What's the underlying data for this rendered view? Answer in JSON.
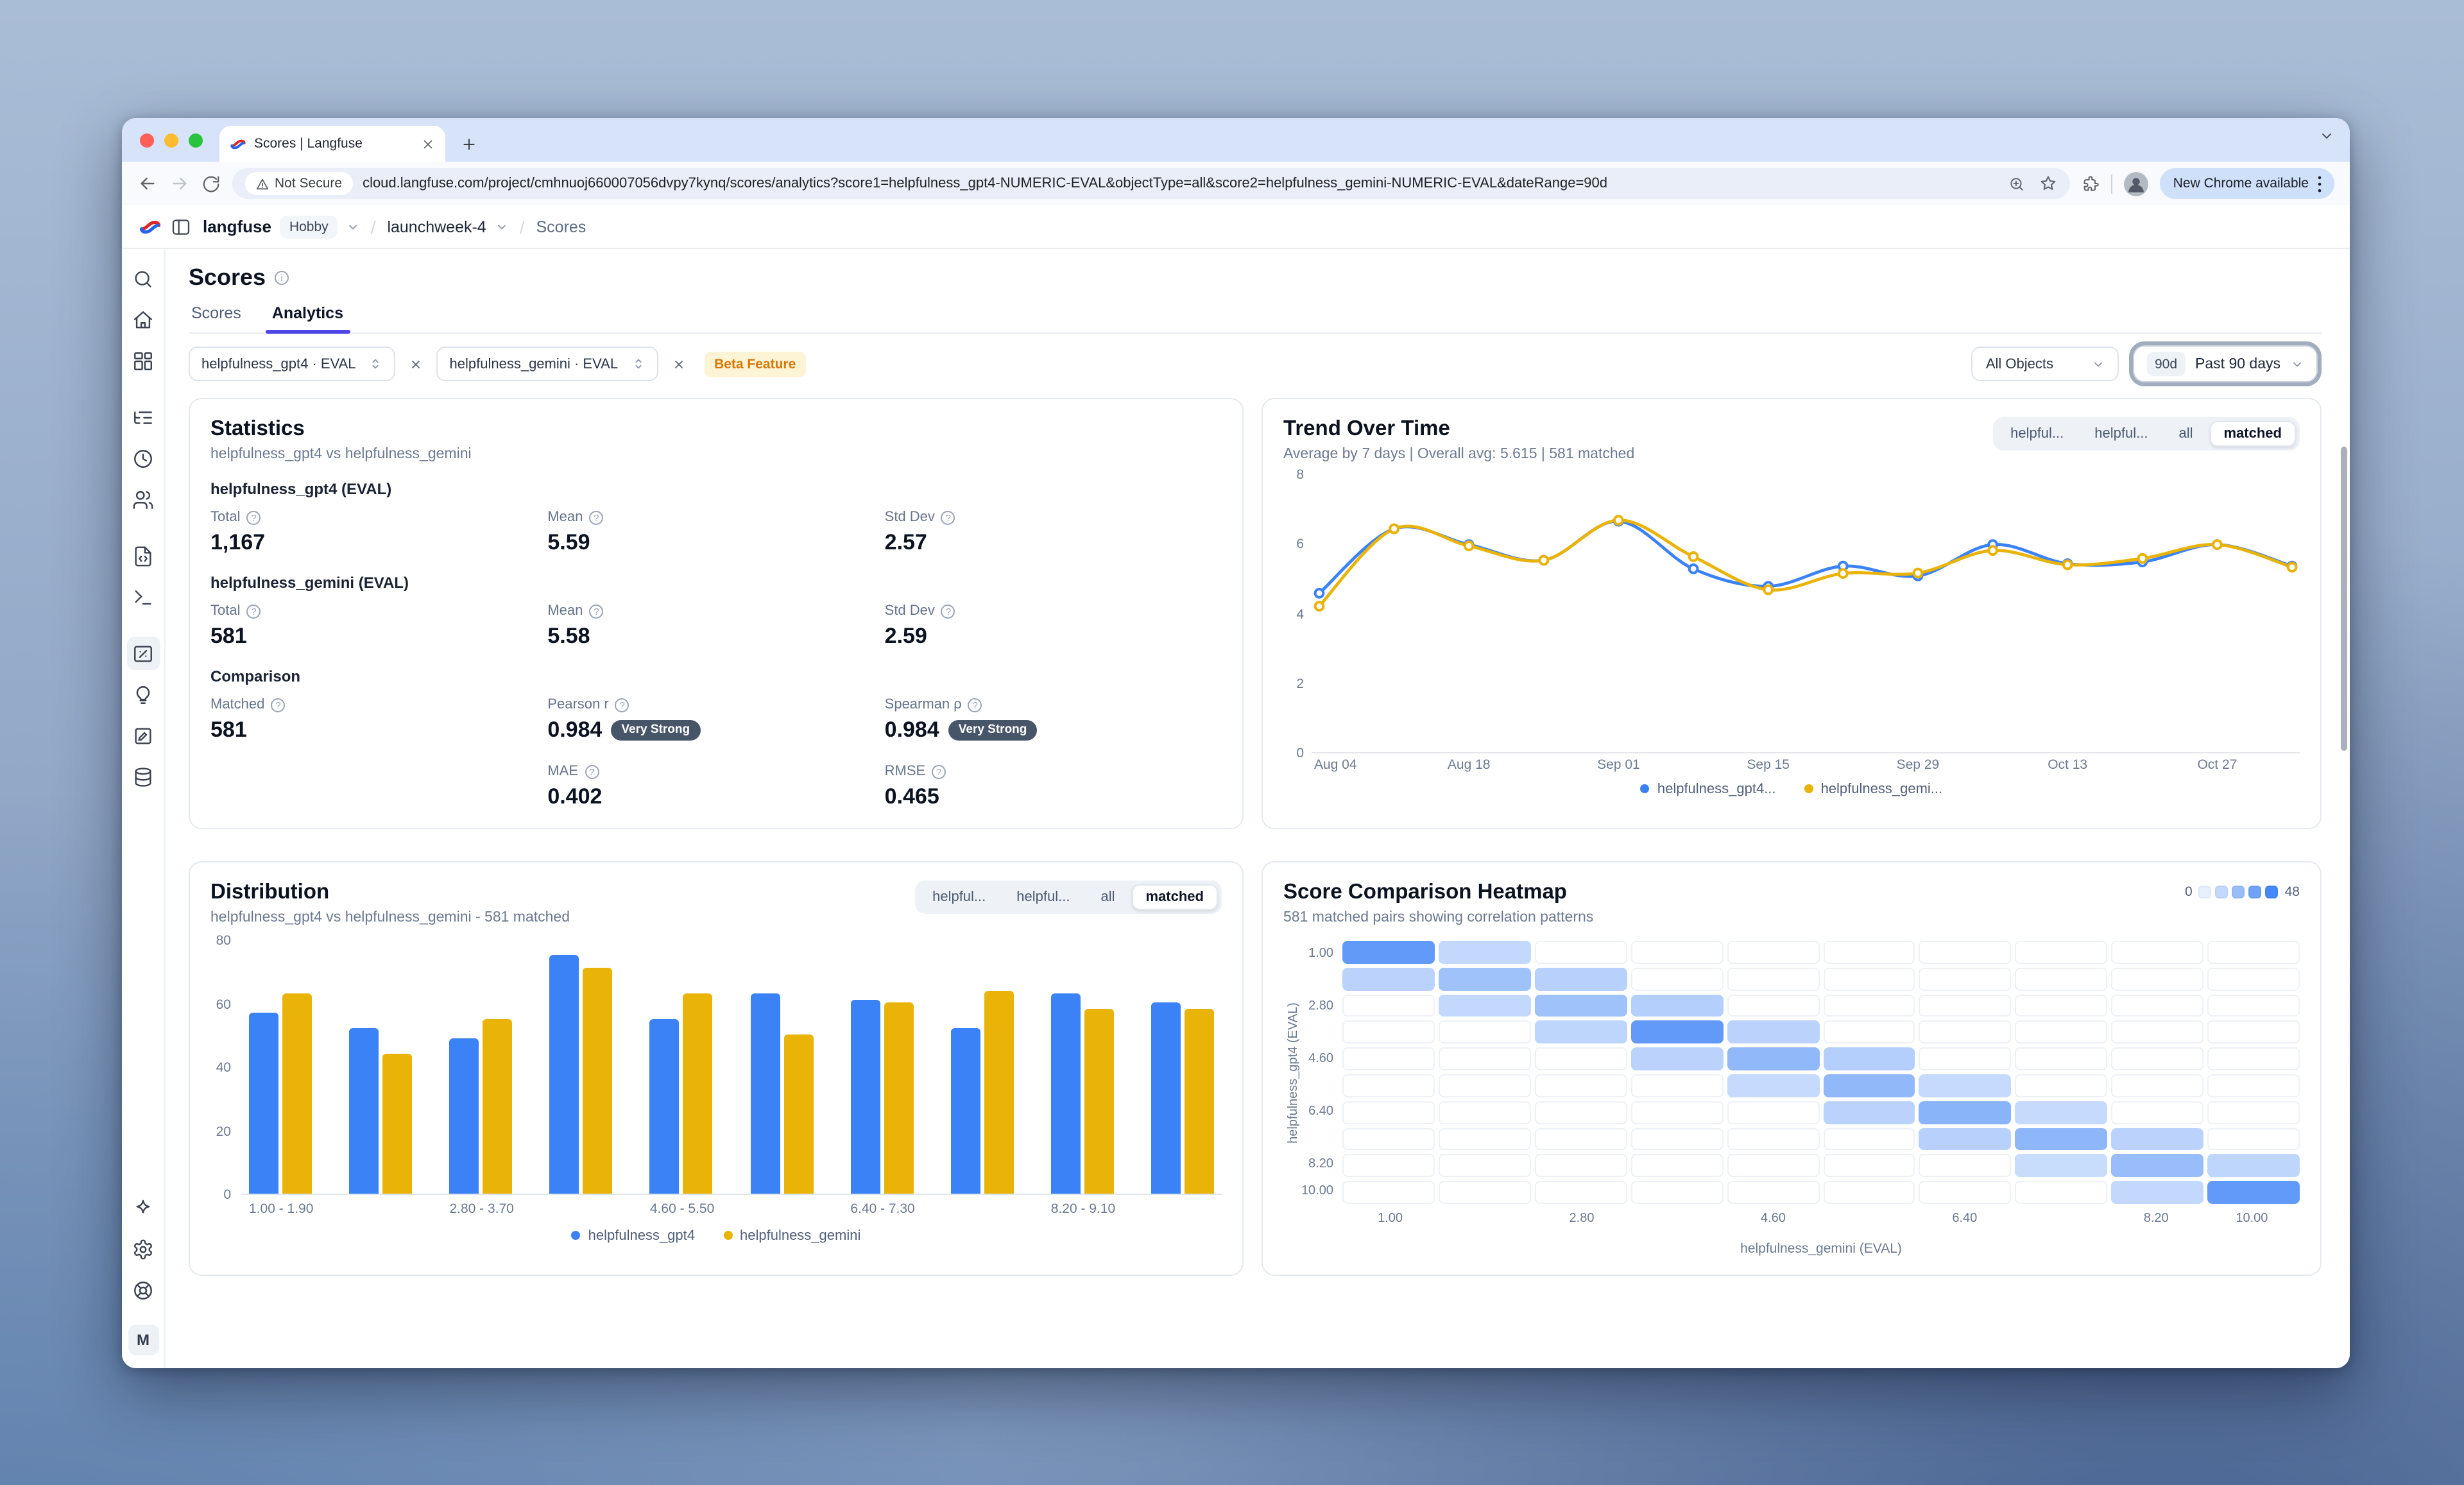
{
  "colors": {
    "blue": "#3b82f6",
    "yellow": "#eab308",
    "accent": "#4f46e5"
  },
  "browser": {
    "tab_title": "Scores | Langfuse",
    "security_label": "Not Secure",
    "url": "cloud.langfuse.com/project/cmhnuoj660007056dvpy7kynq/scores/analytics?score1=helpfulness_gpt4-NUMERIC-EVAL&objectType=all&score2=helpfulness_gemini-NUMERIC-EVAL&dateRange=90d",
    "update_pill": "New Chrome available"
  },
  "header": {
    "org": "langfuse",
    "plan_badge": "Hobby",
    "project": "launchweek-4",
    "page": "Scores"
  },
  "sidebar": {
    "active": "scores",
    "top": [
      "search",
      "home",
      "dashboard",
      "tracing",
      "sessions",
      "users",
      "prompts",
      "playground",
      "scores",
      "evaluation",
      "datasets",
      "storage"
    ],
    "groups_after": [
      "dashboard",
      "users",
      "playground"
    ],
    "bottom": [
      "sparkle",
      "settings",
      "support"
    ],
    "avatar": "M"
  },
  "page": {
    "title": "Scores",
    "tabs": [
      {
        "label": "Scores",
        "active": false
      },
      {
        "label": "Analytics",
        "active": true
      }
    ],
    "filters": {
      "score1": "helpfulness_gpt4 · EVAL",
      "score2": "helpfulness_gemini · EVAL",
      "beta_badge": "Beta Feature",
      "object_filter": "All Objects",
      "date_range_short": "90d",
      "date_range": "Past 90 days"
    }
  },
  "statistics": {
    "title": "Statistics",
    "subtitle": "helpfulness_gpt4 vs helpfulness_gemini",
    "sections": [
      {
        "name": "helpfulness_gpt4 (EVAL)",
        "metrics": [
          {
            "label": "Total",
            "value": "1,167"
          },
          {
            "label": "Mean",
            "value": "5.59"
          },
          {
            "label": "Std Dev",
            "value": "2.57"
          }
        ]
      },
      {
        "name": "helpfulness_gemini (EVAL)",
        "metrics": [
          {
            "label": "Total",
            "value": "581"
          },
          {
            "label": "Mean",
            "value": "5.58"
          },
          {
            "label": "Std Dev",
            "value": "2.59"
          }
        ]
      }
    ],
    "comparison": {
      "name": "Comparison",
      "rows": [
        [
          {
            "label": "Matched",
            "value": "581"
          },
          {
            "label": "Pearson r",
            "value": "0.984",
            "badge": "Very Strong"
          },
          {
            "label": "Spearman ρ",
            "value": "0.984",
            "badge": "Very Strong"
          }
        ],
        [
          null,
          {
            "label": "MAE",
            "value": "0.402"
          },
          {
            "label": "RMSE",
            "value": "0.465"
          }
        ]
      ]
    }
  },
  "trend": {
    "title": "Trend Over Time",
    "subtitle": "Average by 7 days | Overall avg: 5.615 | 581 matched",
    "views": {
      "options": [
        "helpful...",
        "helpful...",
        "all",
        "matched"
      ],
      "active": 3
    },
    "legend": [
      {
        "label": "helpfulness_gpt4...",
        "color": "#3b82f6"
      },
      {
        "label": "helpfulness_gemi...",
        "color": "#eab308"
      }
    ],
    "chart_data": {
      "type": "line",
      "x": [
        "Aug 04",
        "Aug 11",
        "Aug 18",
        "Aug 25",
        "Sep 01",
        "Sep 08",
        "Sep 15",
        "Sep 22",
        "Sep 29",
        "Oct 06",
        "Oct 13",
        "Oct 20",
        "Oct 27",
        "Nov 03"
      ],
      "xticks": {
        "indices": [
          0,
          2,
          4,
          6,
          8,
          10,
          12
        ],
        "labels": [
          "Aug 04",
          "Aug 18",
          "Sep 01",
          "Sep 15",
          "Sep 29",
          "Oct 13",
          "Oct 27"
        ]
      },
      "series": [
        {
          "name": "helpfulness_gpt4",
          "color": "#3b82f6",
          "values": [
            4.6,
            6.45,
            6.0,
            5.55,
            6.67,
            5.3,
            4.8,
            5.38,
            5.1,
            6.0,
            5.45,
            5.5,
            6.0,
            5.38
          ]
        },
        {
          "name": "helpfulness_gemini",
          "color": "#eab308",
          "values": [
            4.23,
            6.45,
            5.96,
            5.55,
            6.7,
            5.65,
            4.7,
            5.17,
            5.18,
            5.83,
            5.42,
            5.6,
            6.0,
            5.35
          ]
        }
      ],
      "ylim": [
        0,
        8
      ],
      "yticks": [
        0,
        2,
        4,
        6,
        8
      ]
    }
  },
  "distribution": {
    "title": "Distribution",
    "subtitle": "helpfulness_gpt4 vs helpfulness_gemini - 581 matched",
    "views": {
      "options": [
        "helpful...",
        "helpful...",
        "all",
        "matched"
      ],
      "active": 3
    },
    "legend": [
      {
        "label": "helpfulness_gpt4",
        "color": "#3b82f6"
      },
      {
        "label": "helpfulness_gemini",
        "color": "#eab308"
      }
    ],
    "chart_data": {
      "type": "bar",
      "bins": [
        "1.00 - 1.90",
        "1.90 - 2.80",
        "2.80 - 3.70",
        "3.70 - 4.60",
        "4.60 - 5.50",
        "5.50 - 6.40",
        "6.40 - 7.30",
        "7.30 - 8.20",
        "8.20 - 9.10",
        "9.10 - 10.00"
      ],
      "shown_bin_indices": [
        0,
        2,
        4,
        6,
        8
      ],
      "series": [
        {
          "name": "helpfulness_gpt4",
          "color": "#3b82f6",
          "values": [
            57,
            52,
            49,
            75,
            55,
            63,
            61,
            52,
            63,
            60
          ]
        },
        {
          "name": "helpfulness_gemini",
          "color": "#eab308",
          "values": [
            63,
            44,
            55,
            71,
            63,
            50,
            60,
            64,
            58,
            58
          ]
        }
      ],
      "ylim": [
        0,
        80
      ],
      "yticks": [
        0,
        20,
        40,
        60,
        80
      ]
    }
  },
  "heatmap": {
    "title": "Score Comparison Heatmap",
    "subtitle": "581 matched pairs showing correlation patterns",
    "legend_min": "0",
    "legend_max": "48",
    "legend_steps": [
      1,
      12,
      24,
      36,
      48
    ],
    "chart_data": {
      "type": "heatmap",
      "xlabel": "helpfulness_gemini (EVAL)",
      "ylabel": "helpfulness_gpt4 (EVAL)",
      "ticks": {
        "labels": [
          "1.00",
          "2.80",
          "4.60",
          "6.40",
          "8.20",
          "10.00"
        ],
        "indices": [
          0,
          2,
          4,
          6,
          8,
          9
        ]
      },
      "vmin": 0,
      "vmax": 48,
      "matrix": [
        [
          40,
          12,
          0,
          0,
          0,
          0,
          0,
          0,
          0,
          0
        ],
        [
          14,
          22,
          15,
          0,
          0,
          0,
          0,
          0,
          0,
          0
        ],
        [
          0,
          12,
          22,
          16,
          0,
          0,
          0,
          0,
          0,
          0
        ],
        [
          0,
          0,
          13,
          40,
          14,
          0,
          0,
          0,
          0,
          0
        ],
        [
          0,
          0,
          0,
          14,
          26,
          16,
          0,
          0,
          0,
          0
        ],
        [
          0,
          0,
          0,
          0,
          11,
          26,
          11,
          0,
          0,
          0
        ],
        [
          0,
          0,
          0,
          0,
          0,
          14,
          28,
          11,
          0,
          0
        ],
        [
          0,
          0,
          0,
          0,
          0,
          0,
          15,
          27,
          14,
          0
        ],
        [
          0,
          0,
          0,
          0,
          0,
          0,
          0,
          10,
          24,
          13
        ],
        [
          0,
          0,
          0,
          0,
          0,
          0,
          0,
          0,
          12,
          40
        ]
      ]
    }
  }
}
